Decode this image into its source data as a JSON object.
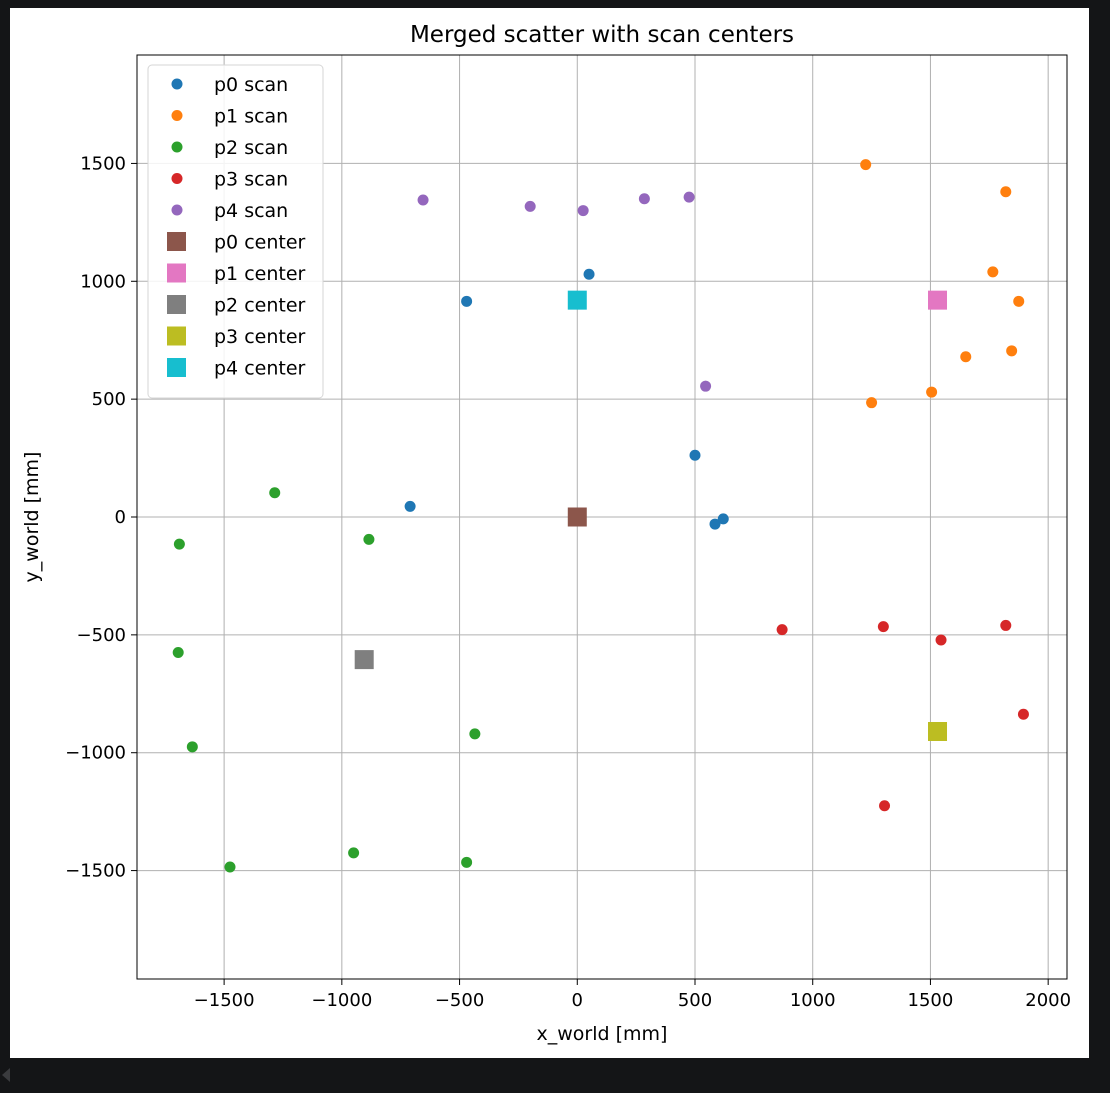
{
  "chart_data": {
    "type": "scatter",
    "title": "Merged scatter with scan centers",
    "xlabel": "x_world [mm]",
    "ylabel": "y_world [mm]",
    "xlim": [
      -1870,
      2080
    ],
    "ylim": [
      -1960,
      1960
    ],
    "xticks": [
      -1500,
      -1000,
      -500,
      0,
      500,
      1000,
      1500,
      2000
    ],
    "yticks": [
      -1500,
      -1000,
      -500,
      0,
      500,
      1000,
      1500
    ],
    "xtick_labels": [
      "−1500",
      "−1000",
      "−500",
      "0",
      "500",
      "1000",
      "1500",
      "2000"
    ],
    "ytick_labels": [
      "−1500",
      "−1000",
      "−500",
      "0",
      "500",
      "1000",
      "1500"
    ],
    "grid": true,
    "legend_position": "top-left",
    "series": [
      {
        "name": "p0 scan",
        "marker": "circle",
        "color": "#1f77b4",
        "points": [
          [
            -470,
            915
          ],
          [
            50,
            1030
          ],
          [
            500,
            262
          ],
          [
            -710,
            45
          ],
          [
            585,
            -30
          ],
          [
            620,
            -8
          ]
        ]
      },
      {
        "name": "p1 scan",
        "marker": "circle",
        "color": "#ff7f0e",
        "points": [
          [
            1225,
            1495
          ],
          [
            1820,
            1380
          ],
          [
            1765,
            1040
          ],
          [
            1875,
            915
          ],
          [
            1650,
            680
          ],
          [
            1845,
            705
          ],
          [
            1250,
            485
          ],
          [
            1505,
            530
          ]
        ]
      },
      {
        "name": "p2 scan",
        "marker": "circle",
        "color": "#2ca02c",
        "points": [
          [
            -1690,
            -115
          ],
          [
            -1285,
            103
          ],
          [
            -885,
            -95
          ],
          [
            -1695,
            -575
          ],
          [
            -1635,
            -975
          ],
          [
            -435,
            -920
          ],
          [
            -1475,
            -1485
          ],
          [
            -950,
            -1425
          ],
          [
            -470,
            -1465
          ]
        ]
      },
      {
        "name": "p3 scan",
        "marker": "circle",
        "color": "#d62728",
        "points": [
          [
            870,
            -478
          ],
          [
            1300,
            -465
          ],
          [
            1545,
            -522
          ],
          [
            1820,
            -460
          ],
          [
            1895,
            -837
          ],
          [
            1305,
            -1225
          ]
        ]
      },
      {
        "name": "p4 scan",
        "marker": "circle",
        "color": "#9467bd",
        "points": [
          [
            -655,
            1345
          ],
          [
            -200,
            1318
          ],
          [
            25,
            1300
          ],
          [
            285,
            1350
          ],
          [
            475,
            1357
          ],
          [
            545,
            555
          ]
        ]
      },
      {
        "name": "p0 center",
        "marker": "square",
        "color": "#8c564b",
        "points": [
          [
            0,
            0
          ]
        ]
      },
      {
        "name": "p1 center",
        "marker": "square",
        "color": "#e377c2",
        "points": [
          [
            1530,
            920
          ]
        ]
      },
      {
        "name": "p2 center",
        "marker": "square",
        "color": "#7f7f7f",
        "points": [
          [
            -905,
            -605
          ]
        ]
      },
      {
        "name": "p3 center",
        "marker": "square",
        "color": "#bcbd22",
        "points": [
          [
            1530,
            -910
          ]
        ]
      },
      {
        "name": "p4 center",
        "marker": "square",
        "color": "#17becf",
        "points": [
          [
            0,
            920
          ]
        ]
      }
    ]
  }
}
